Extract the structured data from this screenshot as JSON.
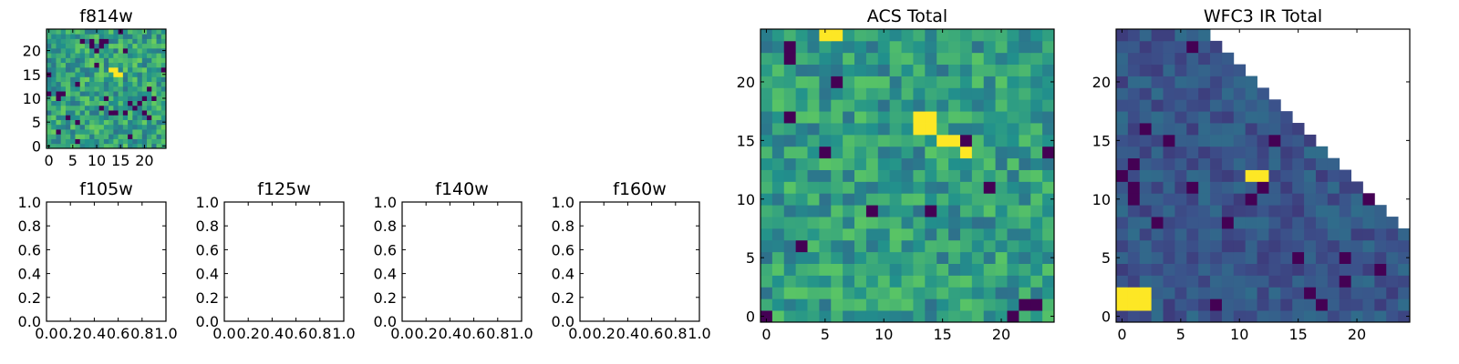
{
  "colormap": "viridis",
  "colormap_stops": [
    "#440154",
    "#3b528b",
    "#21918c",
    "#5ec962",
    "#fde725"
  ],
  "chart_data": [
    {
      "id": "f814w",
      "type": "heatmap",
      "title": "f814w",
      "grid_size": 25,
      "xlim": [
        -0.5,
        24.5
      ],
      "ylim": [
        -0.5,
        24.5
      ],
      "xticks": [
        "0",
        "5",
        "10",
        "15",
        "20"
      ],
      "yticks": [
        "0",
        "5",
        "10",
        "15",
        "20"
      ],
      "xtick_values": [
        0,
        5,
        10,
        15,
        20
      ],
      "ytick_values": [
        0,
        5,
        10,
        15,
        20
      ],
      "bright_spots": [
        {
          "x": 13,
          "y": 16
        },
        {
          "x": 14,
          "y": 16
        },
        {
          "x": 14,
          "y": 15
        },
        {
          "x": 15,
          "y": 15
        }
      ],
      "seed": 11,
      "base_level": 0.58,
      "noise": 0.2,
      "low_outlier_rate": 0.06,
      "masked_above_diagonal": false
    },
    {
      "id": "f105w",
      "type": "empty",
      "title": "f105w",
      "xlim": [
        0,
        1
      ],
      "ylim": [
        0,
        1
      ],
      "xticks": [
        "0.0",
        "0.2",
        "0.4",
        "0.6",
        "0.8",
        "1.0"
      ],
      "yticks": [
        "0.0",
        "0.2",
        "0.4",
        "0.6",
        "0.8",
        "1.0"
      ],
      "xtick_values": [
        0,
        0.2,
        0.4,
        0.6,
        0.8,
        1.0
      ],
      "ytick_values": [
        0,
        0.2,
        0.4,
        0.6,
        0.8,
        1.0
      ]
    },
    {
      "id": "f125w",
      "type": "empty",
      "title": "f125w",
      "xlim": [
        0,
        1
      ],
      "ylim": [
        0,
        1
      ],
      "xticks": [
        "0.0",
        "0.2",
        "0.4",
        "0.6",
        "0.8",
        "1.0"
      ],
      "yticks": [
        "0.0",
        "0.2",
        "0.4",
        "0.6",
        "0.8",
        "1.0"
      ],
      "xtick_values": [
        0,
        0.2,
        0.4,
        0.6,
        0.8,
        1.0
      ],
      "ytick_values": [
        0,
        0.2,
        0.4,
        0.6,
        0.8,
        1.0
      ]
    },
    {
      "id": "f140w",
      "type": "empty",
      "title": "f140w",
      "xlim": [
        0,
        1
      ],
      "ylim": [
        0,
        1
      ],
      "xticks": [
        "0.0",
        "0.2",
        "0.4",
        "0.6",
        "0.8",
        "1.0"
      ],
      "yticks": [
        "0.0",
        "0.2",
        "0.4",
        "0.6",
        "0.8",
        "1.0"
      ],
      "xtick_values": [
        0,
        0.2,
        0.4,
        0.6,
        0.8,
        1.0
      ],
      "ytick_values": [
        0,
        0.2,
        0.4,
        0.6,
        0.8,
        1.0
      ]
    },
    {
      "id": "f160w",
      "type": "empty",
      "title": "f160w",
      "xlim": [
        0,
        1
      ],
      "ylim": [
        0,
        1
      ],
      "xticks": [
        "0.0",
        "0.2",
        "0.4",
        "0.6",
        "0.8",
        "1.0"
      ],
      "yticks": [
        "0.0",
        "0.2",
        "0.4",
        "0.6",
        "0.8",
        "1.0"
      ],
      "xtick_values": [
        0,
        0.2,
        0.4,
        0.6,
        0.8,
        1.0
      ],
      "ytick_values": [
        0,
        0.2,
        0.4,
        0.6,
        0.8,
        1.0
      ]
    },
    {
      "id": "acs-total",
      "type": "heatmap",
      "title": "ACS Total",
      "grid_size": 25,
      "xlim": [
        -0.5,
        24.5
      ],
      "ylim": [
        -0.5,
        24.5
      ],
      "xticks": [
        "0",
        "5",
        "10",
        "15",
        "20"
      ],
      "yticks": [
        "0",
        "5",
        "10",
        "15",
        "20"
      ],
      "xtick_values": [
        0,
        5,
        10,
        15,
        20
      ],
      "ytick_values": [
        0,
        5,
        10,
        15,
        20
      ],
      "bright_spots": [
        {
          "x": 13,
          "y": 17
        },
        {
          "x": 14,
          "y": 17
        },
        {
          "x": 13,
          "y": 16
        },
        {
          "x": 14,
          "y": 16
        },
        {
          "x": 15,
          "y": 15
        },
        {
          "x": 16,
          "y": 15
        },
        {
          "x": 17,
          "y": 14
        },
        {
          "x": 5,
          "y": 24
        },
        {
          "x": 6,
          "y": 24
        }
      ],
      "seed": 7,
      "base_level": 0.55,
      "noise": 0.18,
      "low_outlier_rate": 0.035,
      "masked_above_diagonal": false
    },
    {
      "id": "wfc3-ir-total",
      "type": "heatmap",
      "title": "WFC3 IR Total",
      "grid_size": 25,
      "xlim": [
        -0.5,
        24.5
      ],
      "ylim": [
        -0.5,
        24.5
      ],
      "xticks": [
        "0",
        "5",
        "10",
        "15",
        "20"
      ],
      "yticks": [
        "0",
        "5",
        "10",
        "15",
        "20"
      ],
      "xtick_values": [
        0,
        5,
        10,
        15,
        20
      ],
      "ytick_values": [
        0,
        5,
        10,
        15,
        20
      ],
      "bright_spots": [
        {
          "x": 11,
          "y": 12
        },
        {
          "x": 12,
          "y": 12
        },
        {
          "x": 0,
          "y": 2
        },
        {
          "x": 1,
          "y": 2
        },
        {
          "x": 2,
          "y": 2
        },
        {
          "x": 0,
          "y": 1
        },
        {
          "x": 1,
          "y": 1
        },
        {
          "x": 2,
          "y": 1
        }
      ],
      "seed": 23,
      "base_level": 0.27,
      "noise": 0.09,
      "low_outlier_rate": 0.05,
      "masked_above_diagonal": true,
      "mask_offset": 31
    }
  ]
}
